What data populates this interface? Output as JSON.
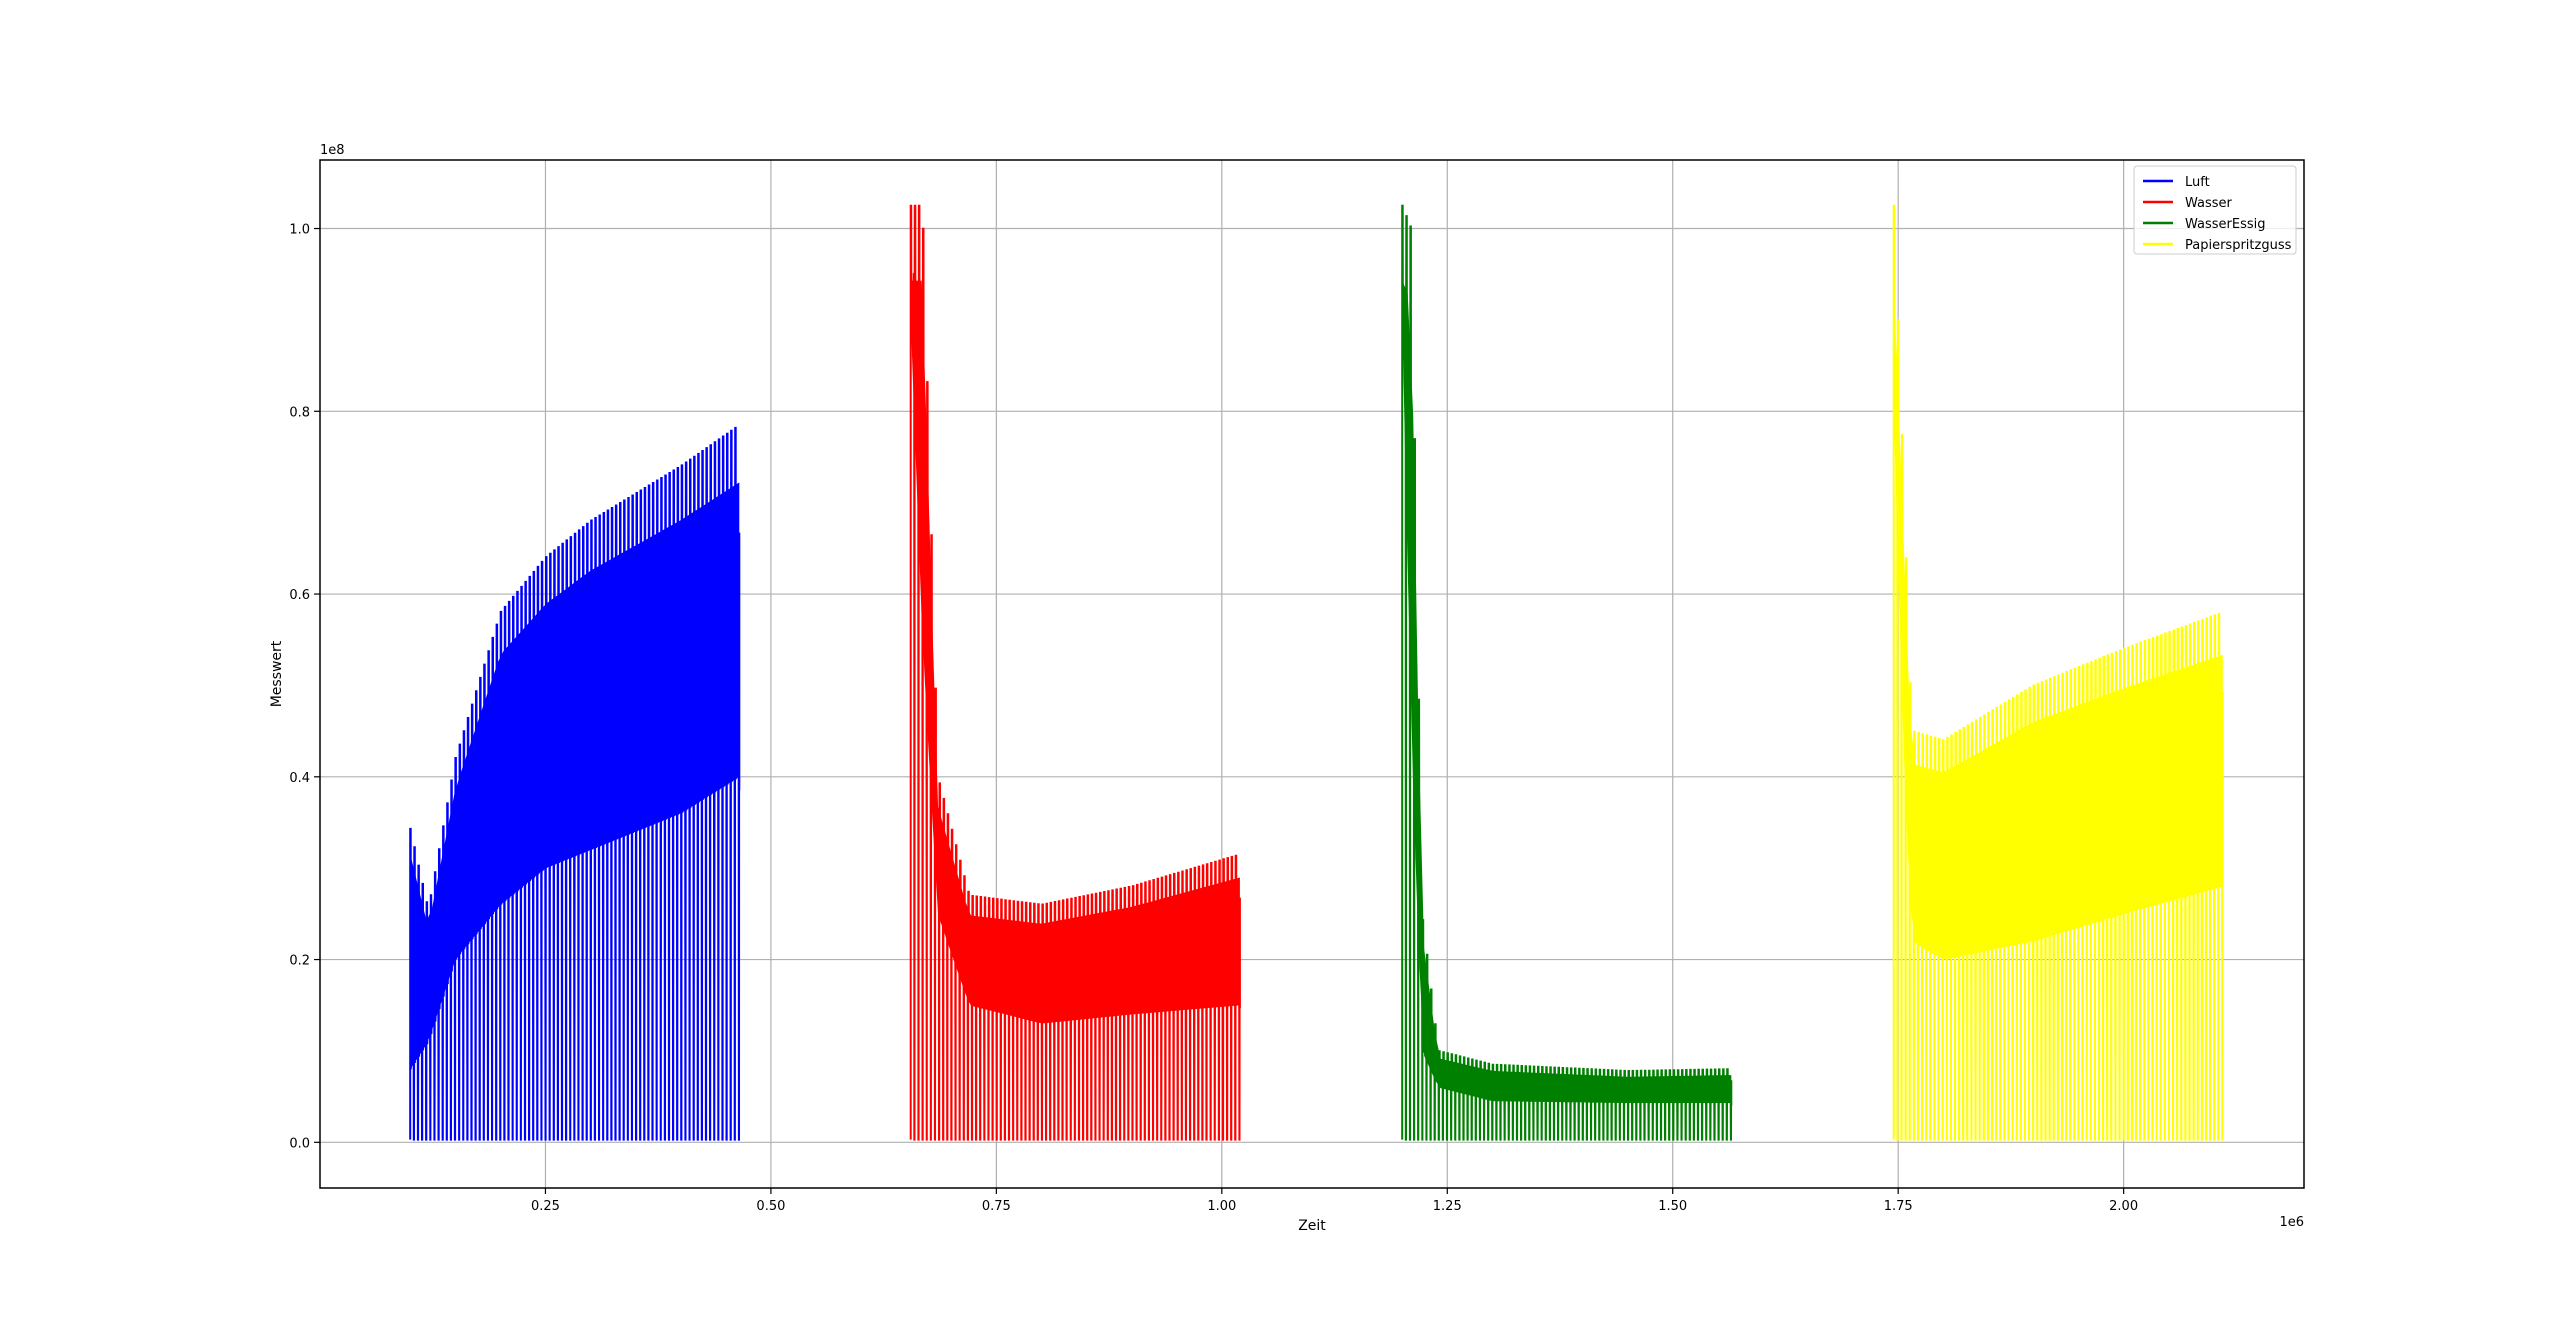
{
  "chart_data": {
    "type": "line",
    "xlabel": "Zeit",
    "ylabel": "Messwert",
    "x_offset_label": "1e6",
    "y_offset_label": "1e8",
    "xlim": [
      0.0,
      2.2
    ],
    "ylim": [
      -0.05,
      1.075
    ],
    "x_ticks": [
      0.25,
      0.5,
      0.75,
      1.0,
      1.25,
      1.5,
      1.75,
      2.0
    ],
    "x_tick_labels": [
      "0.25",
      "0.50",
      "0.75",
      "1.00",
      "1.25",
      "1.50",
      "1.75",
      "2.00"
    ],
    "y_ticks": [
      0.0,
      0.2,
      0.4,
      0.6,
      0.8,
      1.0
    ],
    "y_tick_labels": [
      "0.0",
      "0.2",
      "0.4",
      "0.6",
      "0.8",
      "1.0"
    ],
    "grid": true,
    "legend_position": "top-right",
    "series": [
      {
        "name": "Luft",
        "color": "#0000ff",
        "x_start": 0.1,
        "x_end": 0.465,
        "cycles": 80,
        "min_value": 0.003,
        "first_peak": 0.343,
        "envelope": [
          {
            "x": 0.1,
            "peak": 0.343,
            "base": 0.08,
            "mid": 0.12
          },
          {
            "x": 0.12,
            "peak": 0.255,
            "base": 0.11,
            "mid": 0.16
          },
          {
            "x": 0.15,
            "peak": 0.42,
            "base": 0.2,
            "mid": 0.3
          },
          {
            "x": 0.2,
            "peak": 0.58,
            "base": 0.26,
            "mid": 0.4
          },
          {
            "x": 0.25,
            "peak": 0.64,
            "base": 0.3,
            "mid": 0.44
          },
          {
            "x": 0.3,
            "peak": 0.68,
            "base": 0.32,
            "mid": 0.47
          },
          {
            "x": 0.35,
            "peak": 0.71,
            "base": 0.34,
            "mid": 0.5
          },
          {
            "x": 0.4,
            "peak": 0.74,
            "base": 0.36,
            "mid": 0.52
          },
          {
            "x": 0.465,
            "peak": 0.785,
            "base": 0.4,
            "mid": 0.55
          }
        ]
      },
      {
        "name": "Wasser",
        "color": "#ff0000",
        "x_start": 0.655,
        "x_end": 1.02,
        "cycles": 80,
        "min_value": 0.003,
        "first_peak": 1.025,
        "envelope": [
          {
            "x": 0.655,
            "peak": 1.025,
            "base": 0.9,
            "mid": 0.95
          },
          {
            "x": 0.668,
            "peak": 1.025,
            "base": 0.55,
            "mid": 0.7
          },
          {
            "x": 0.685,
            "peak": 0.4,
            "base": 0.25,
            "mid": 0.3
          },
          {
            "x": 0.72,
            "peak": 0.27,
            "base": 0.15,
            "mid": 0.19
          },
          {
            "x": 0.8,
            "peak": 0.26,
            "base": 0.13,
            "mid": 0.17
          },
          {
            "x": 0.9,
            "peak": 0.28,
            "base": 0.14,
            "mid": 0.19
          },
          {
            "x": 1.02,
            "peak": 0.315,
            "base": 0.15,
            "mid": 0.21
          }
        ]
      },
      {
        "name": "WasserEssig",
        "color": "#008000",
        "x_start": 1.2,
        "x_end": 1.565,
        "cycles": 80,
        "min_value": 0.003,
        "first_peak": 1.025,
        "envelope": [
          {
            "x": 1.2,
            "peak": 1.025,
            "base": 0.9,
            "mid": 0.95
          },
          {
            "x": 1.21,
            "peak": 1.0,
            "base": 0.45,
            "mid": 0.6
          },
          {
            "x": 1.222,
            "peak": 0.25,
            "base": 0.1,
            "mid": 0.15
          },
          {
            "x": 1.24,
            "peak": 0.1,
            "base": 0.06,
            "mid": 0.075
          },
          {
            "x": 1.3,
            "peak": 0.085,
            "base": 0.045,
            "mid": 0.06
          },
          {
            "x": 1.45,
            "peak": 0.078,
            "base": 0.043,
            "mid": 0.055
          },
          {
            "x": 1.565,
            "peak": 0.08,
            "base": 0.043,
            "mid": 0.057
          }
        ]
      },
      {
        "name": "Papierspritzguss",
        "color": "#ffff00",
        "x_start": 1.745,
        "x_end": 2.11,
        "cycles": 80,
        "min_value": 0.003,
        "first_peak": 1.025,
        "envelope": [
          {
            "x": 1.745,
            "peak": 1.025,
            "base": 0.8,
            "mid": 0.9
          },
          {
            "x": 1.755,
            "peak": 0.75,
            "base": 0.45,
            "mid": 0.55
          },
          {
            "x": 1.765,
            "peak": 0.45,
            "base": 0.22,
            "mid": 0.3
          },
          {
            "x": 1.8,
            "peak": 0.44,
            "base": 0.2,
            "mid": 0.3
          },
          {
            "x": 1.9,
            "peak": 0.5,
            "base": 0.22,
            "mid": 0.33
          },
          {
            "x": 2.0,
            "peak": 0.54,
            "base": 0.25,
            "mid": 0.37
          },
          {
            "x": 2.11,
            "peak": 0.58,
            "base": 0.28,
            "mid": 0.41
          }
        ]
      }
    ]
  }
}
